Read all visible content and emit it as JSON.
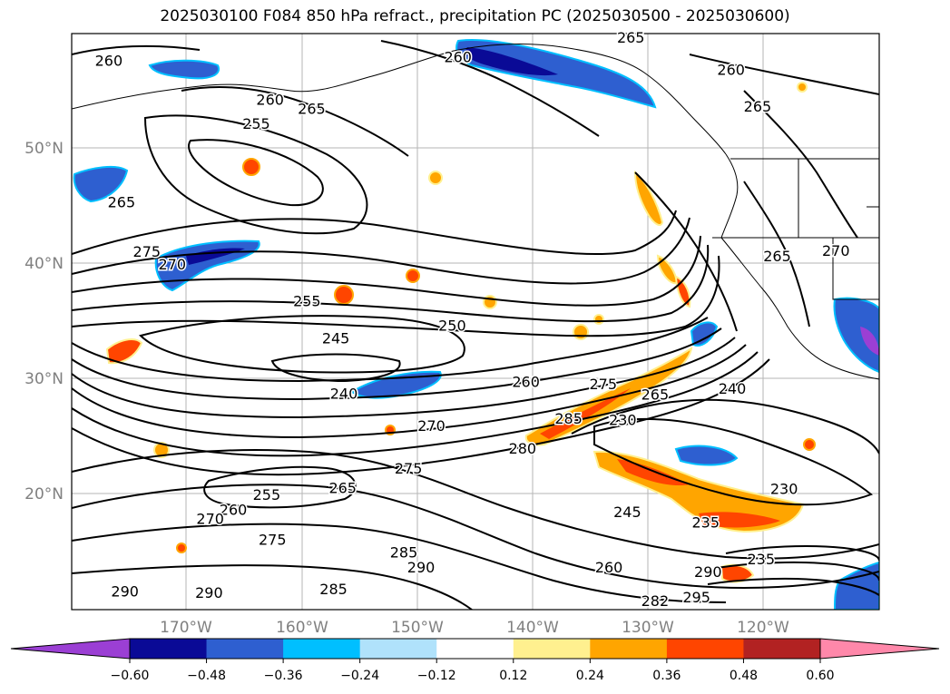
{
  "title": "2025030100 F084 850 hPa refract., precipitation PC (2025030500 - 2025030600)",
  "map": {
    "lat_labels": [
      "50°N",
      "40°N",
      "30°N",
      "20°N"
    ],
    "lon_labels": [
      "170°W",
      "160°W",
      "150°W",
      "140°W",
      "130°W",
      "120°W"
    ],
    "contour_labels": [
      {
        "text": "260",
        "lon": -176.7,
        "lat": 57.5
      },
      {
        "text": "260",
        "lon": -146.4,
        "lat": 57.8
      },
      {
        "text": "265",
        "lon": -131.4,
        "lat": 59.5
      },
      {
        "text": "260",
        "lon": -122.7,
        "lat": 56.7
      },
      {
        "text": "260",
        "lon": -162.7,
        "lat": 54.1
      },
      {
        "text": "265",
        "lon": -159.1,
        "lat": 53.3
      },
      {
        "text": "265",
        "lon": -120.4,
        "lat": 53.5
      },
      {
        "text": "255",
        "lon": -163.9,
        "lat": 52.0
      },
      {
        "text": "265",
        "lon": -175.6,
        "lat": 45.2
      },
      {
        "text": "275",
        "lon": -173.4,
        "lat": 40.9
      },
      {
        "text": "270",
        "lon": -171.2,
        "lat": 39.8
      },
      {
        "text": "265",
        "lon": -118.7,
        "lat": 40.5
      },
      {
        "text": "270",
        "lon": -113.6,
        "lat": 41.0
      },
      {
        "text": "255",
        "lon": -159.5,
        "lat": 36.6
      },
      {
        "text": "250",
        "lon": -146.9,
        "lat": 34.5
      },
      {
        "text": "245",
        "lon": -157.0,
        "lat": 33.4
      },
      {
        "text": "260",
        "lon": -140.5,
        "lat": 29.6
      },
      {
        "text": "275",
        "lon": -133.8,
        "lat": 29.4
      },
      {
        "text": "265",
        "lon": -129.3,
        "lat": 28.5
      },
      {
        "text": "240",
        "lon": -122.6,
        "lat": 29.0
      },
      {
        "text": "240",
        "lon": -156.3,
        "lat": 28.6
      },
      {
        "text": "285",
        "lon": -136.8,
        "lat": 26.4
      },
      {
        "text": "230",
        "lon": -132.1,
        "lat": 26.3
      },
      {
        "text": "270",
        "lon": -148.7,
        "lat": 25.8
      },
      {
        "text": "280",
        "lon": -140.8,
        "lat": 23.8
      },
      {
        "text": "275",
        "lon": -150.7,
        "lat": 22.1
      },
      {
        "text": "230",
        "lon": -118.1,
        "lat": 20.3
      },
      {
        "text": "265",
        "lon": -156.4,
        "lat": 20.4
      },
      {
        "text": "255",
        "lon": -163.0,
        "lat": 19.8
      },
      {
        "text": "260",
        "lon": -165.9,
        "lat": 18.5
      },
      {
        "text": "270",
        "lon": -167.9,
        "lat": 17.7
      },
      {
        "text": "245",
        "lon": -131.7,
        "lat": 18.3
      },
      {
        "text": "235",
        "lon": -124.9,
        "lat": 17.4
      },
      {
        "text": "275",
        "lon": -162.5,
        "lat": 15.9
      },
      {
        "text": "285",
        "lon": -151.1,
        "lat": 14.8
      },
      {
        "text": "290",
        "lon": -149.6,
        "lat": 13.5
      },
      {
        "text": "260",
        "lon": -133.3,
        "lat": 13.5
      },
      {
        "text": "235",
        "lon": -120.1,
        "lat": 14.2
      },
      {
        "text": "290",
        "lon": -124.7,
        "lat": 13.1
      },
      {
        "text": "285",
        "lon": -157.2,
        "lat": 11.6
      },
      {
        "text": "290",
        "lon": -175.3,
        "lat": 11.4
      },
      {
        "text": "290",
        "lon": -168.0,
        "lat": 11.3
      },
      {
        "text": "295",
        "lon": -125.7,
        "lat": 10.9
      },
      {
        "text": "282",
        "lon": -129.3,
        "lat": 10.6
      }
    ]
  },
  "colorbar": {
    "ticks": [
      "−0.60",
      "−0.48",
      "−0.36",
      "−0.24",
      "−0.12",
      "0.12",
      "0.24",
      "0.36",
      "0.48",
      "0.60"
    ],
    "colors": {
      "below": "#9b3fd4",
      "bins": [
        "#9b3fd4",
        "#0a0a96",
        "#2e5fd0",
        "#00bfff",
        "#b0e2fb",
        "#ffffff",
        "#fff08f",
        "#ffa500",
        "#ff4500",
        "#b22222",
        "#ff88aa"
      ],
      "above": "#ff88aa"
    }
  }
}
